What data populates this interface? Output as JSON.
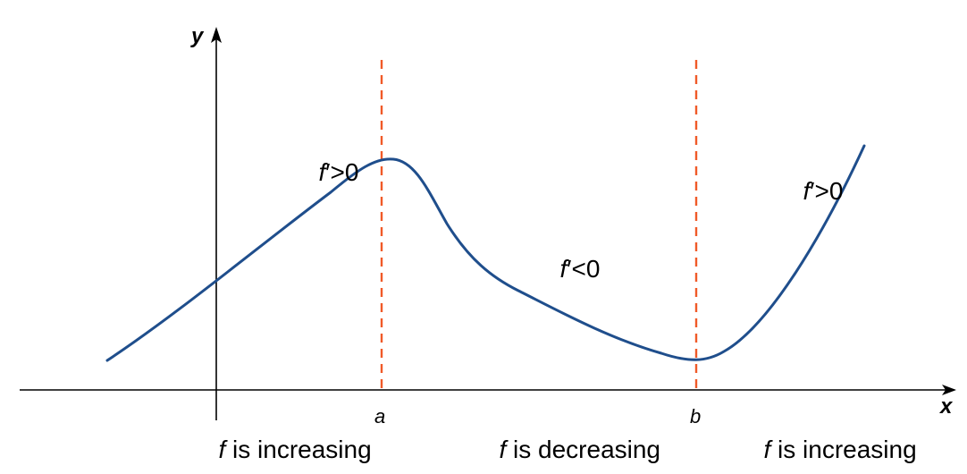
{
  "axes": {
    "x_label": "x",
    "y_label": "y"
  },
  "markers": {
    "a_label": "a",
    "b_label": "b"
  },
  "annotations": {
    "left_sign_f": "f",
    "left_sign_rest": "′>0",
    "middle_sign_f": "f",
    "middle_sign_rest": "′<0",
    "right_sign_f": "f",
    "right_sign_rest": "′>0"
  },
  "regions": {
    "left_f": "f",
    "left_rest": " is increasing",
    "middle_f": "f",
    "middle_rest": " is decreasing",
    "right_f": "f",
    "right_rest": " is increasing"
  },
  "colors": {
    "curve": "#1f4e8c",
    "dashed_lines": "#f05a28",
    "axes": "#000000"
  }
}
